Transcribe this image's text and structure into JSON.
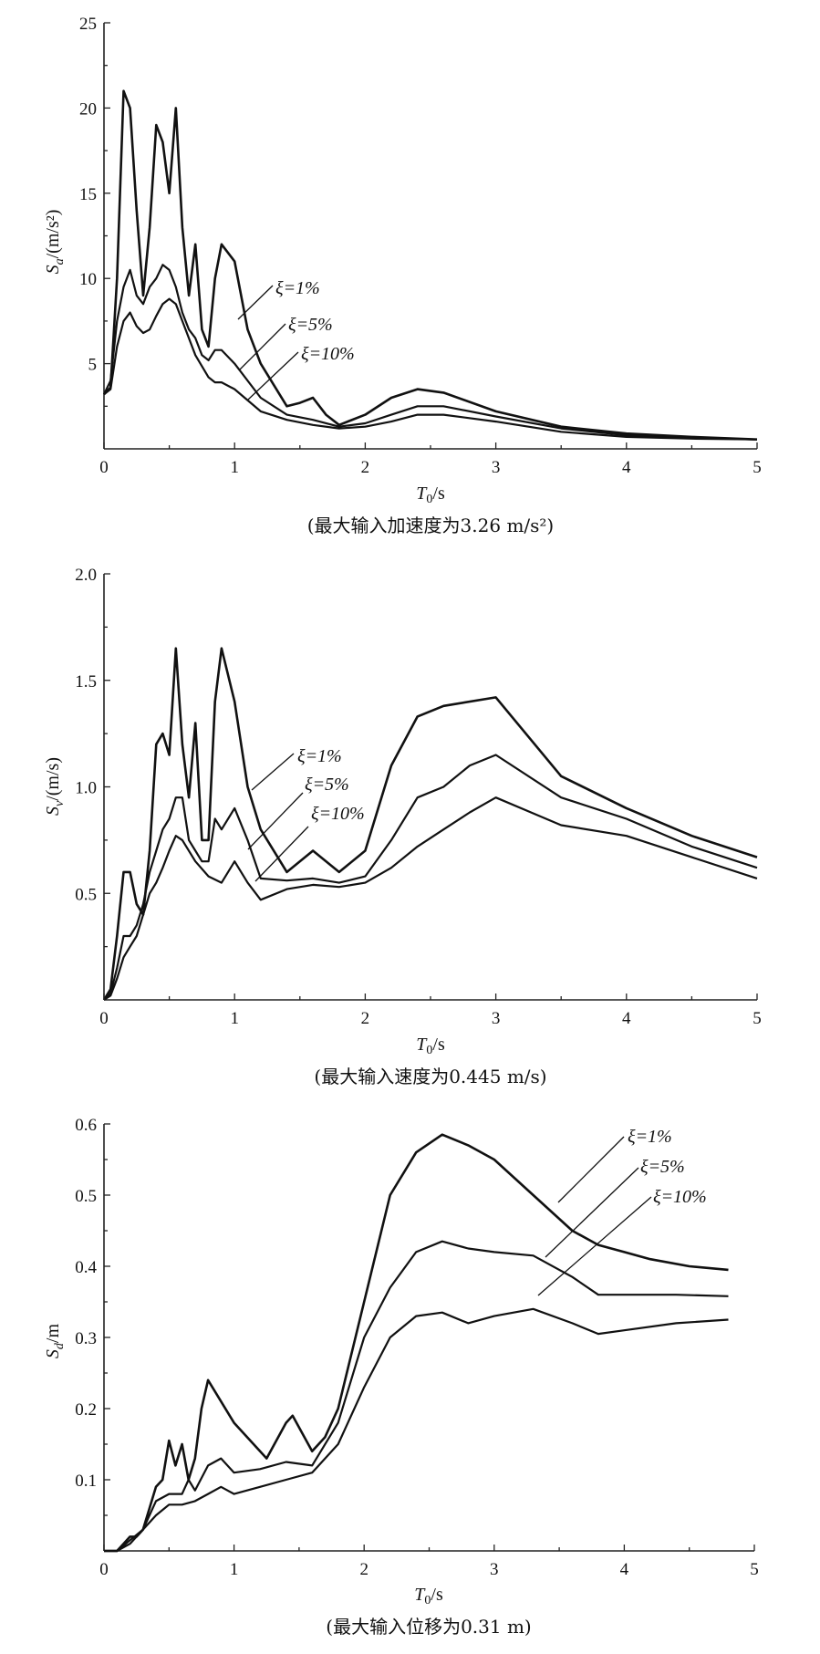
{
  "chart_data": [
    {
      "type": "line",
      "xlabel_main": "T",
      "xlabel_sub": "0",
      "xlabel_unit": "/s",
      "ylabel_main": "S",
      "ylabel_sub": "a",
      "ylabel_unit": "/(m/s²)",
      "caption": "(最大输入加速度为3.26 m/s²)",
      "xlim": [
        0,
        5
      ],
      "ylim": [
        0,
        25
      ],
      "xticks": [
        0,
        1,
        2,
        3,
        4,
        5
      ],
      "xticklabels": [
        "0",
        "1",
        "2",
        "3",
        "4",
        "5"
      ],
      "yticks": [
        5,
        10,
        15,
        20,
        25
      ],
      "yticklabels": [
        "5",
        "10",
        "15",
        "20",
        "25"
      ],
      "series": [
        {
          "name": "ξ=1%",
          "x": [
            0,
            0.05,
            0.1,
            0.15,
            0.2,
            0.25,
            0.3,
            0.35,
            0.4,
            0.45,
            0.5,
            0.55,
            0.6,
            0.65,
            0.7,
            0.75,
            0.8,
            0.85,
            0.9,
            1.0,
            1.1,
            1.2,
            1.4,
            1.5,
            1.6,
            1.7,
            1.8,
            2.0,
            2.2,
            2.4,
            2.6,
            3.0,
            3.5,
            4.0,
            4.5,
            5.0
          ],
          "y": [
            3.2,
            3.6,
            10,
            21,
            20,
            14,
            9,
            13,
            19,
            18,
            15,
            20,
            13,
            9,
            12,
            7,
            6,
            10,
            12,
            11,
            7,
            5,
            2.5,
            2.7,
            3.0,
            2.0,
            1.4,
            2.0,
            3.0,
            3.5,
            3.3,
            2.2,
            1.3,
            0.9,
            0.7,
            0.55
          ]
        },
        {
          "name": "ξ=5%",
          "x": [
            0,
            0.05,
            0.1,
            0.15,
            0.2,
            0.25,
            0.3,
            0.35,
            0.4,
            0.45,
            0.5,
            0.55,
            0.6,
            0.65,
            0.7,
            0.75,
            0.8,
            0.85,
            0.9,
            1.0,
            1.2,
            1.4,
            1.6,
            1.8,
            2.0,
            2.2,
            2.4,
            2.6,
            3.0,
            3.5,
            4.0,
            4.5,
            5.0
          ],
          "y": [
            3.2,
            4.0,
            7.5,
            9.5,
            10.5,
            9,
            8.5,
            9.5,
            10,
            10.8,
            10.5,
            9.5,
            8,
            7,
            6.5,
            5.5,
            5.2,
            5.8,
            5.8,
            5.0,
            3.0,
            2.0,
            1.7,
            1.3,
            1.5,
            2.0,
            2.5,
            2.5,
            1.9,
            1.2,
            0.8,
            0.65,
            0.55
          ]
        },
        {
          "name": "ξ=10%",
          "x": [
            0,
            0.05,
            0.1,
            0.15,
            0.2,
            0.25,
            0.3,
            0.35,
            0.4,
            0.45,
            0.5,
            0.55,
            0.6,
            0.7,
            0.8,
            0.85,
            0.9,
            1.0,
            1.2,
            1.4,
            1.6,
            1.8,
            2.0,
            2.2,
            2.4,
            2.6,
            3.0,
            3.5,
            4.0,
            4.5,
            5.0
          ],
          "y": [
            3.2,
            3.5,
            6,
            7.5,
            8,
            7.2,
            6.8,
            7,
            7.8,
            8.5,
            8.8,
            8.5,
            7.5,
            5.5,
            4.2,
            3.9,
            3.9,
            3.5,
            2.2,
            1.7,
            1.4,
            1.2,
            1.3,
            1.6,
            2.0,
            2.0,
            1.6,
            1.0,
            0.7,
            0.6,
            0.55
          ]
        }
      ],
      "annotations": [
        "ξ=1%",
        "ξ=5%",
        "ξ=10%"
      ]
    },
    {
      "type": "line",
      "xlabel_main": "T",
      "xlabel_sub": "0",
      "xlabel_unit": "/s",
      "ylabel_main": "S",
      "ylabel_sub": "v",
      "ylabel_unit": "/(m/s)",
      "caption": "(最大输入速度为0.445 m/s)",
      "xlim": [
        0,
        5
      ],
      "ylim": [
        0,
        2.0
      ],
      "xticks": [
        0,
        1,
        2,
        3,
        4,
        5
      ],
      "xticklabels": [
        "0",
        "1",
        "2",
        "3",
        "4",
        "5"
      ],
      "yticks": [
        0.5,
        1.0,
        1.5,
        2.0
      ],
      "yticklabels": [
        "0.5",
        "1.0",
        "1.5",
        "2.0"
      ],
      "series": [
        {
          "name": "ξ=1%",
          "x": [
            0,
            0.05,
            0.1,
            0.15,
            0.2,
            0.25,
            0.3,
            0.35,
            0.4,
            0.45,
            0.5,
            0.55,
            0.6,
            0.65,
            0.7,
            0.75,
            0.8,
            0.85,
            0.9,
            1.0,
            1.1,
            1.2,
            1.4,
            1.6,
            1.8,
            2.0,
            2.2,
            2.4,
            2.6,
            3.0,
            3.5,
            4.0,
            4.5,
            5.0
          ],
          "y": [
            0,
            0.05,
            0.3,
            0.6,
            0.6,
            0.45,
            0.4,
            0.7,
            1.2,
            1.25,
            1.15,
            1.65,
            1.2,
            0.95,
            1.3,
            0.75,
            0.75,
            1.4,
            1.65,
            1.4,
            1.0,
            0.8,
            0.6,
            0.7,
            0.6,
            0.7,
            1.1,
            1.33,
            1.38,
            1.42,
            1.05,
            0.9,
            0.77,
            0.67
          ]
        },
        {
          "name": "ξ=5%",
          "x": [
            0,
            0.05,
            0.1,
            0.15,
            0.2,
            0.25,
            0.3,
            0.35,
            0.4,
            0.45,
            0.5,
            0.55,
            0.6,
            0.65,
            0.7,
            0.75,
            0.8,
            0.85,
            0.9,
            1.0,
            1.1,
            1.2,
            1.4,
            1.6,
            1.8,
            2.0,
            2.2,
            2.4,
            2.6,
            2.8,
            3.0,
            3.5,
            4.0,
            4.5,
            5.0
          ],
          "y": [
            0,
            0.03,
            0.15,
            0.3,
            0.3,
            0.35,
            0.45,
            0.6,
            0.7,
            0.8,
            0.85,
            0.95,
            0.95,
            0.75,
            0.7,
            0.65,
            0.65,
            0.85,
            0.8,
            0.9,
            0.75,
            0.57,
            0.56,
            0.57,
            0.55,
            0.58,
            0.75,
            0.95,
            1.0,
            1.1,
            1.15,
            0.95,
            0.85,
            0.72,
            0.62
          ]
        },
        {
          "name": "ξ=10%",
          "x": [
            0,
            0.05,
            0.1,
            0.15,
            0.2,
            0.25,
            0.3,
            0.35,
            0.4,
            0.45,
            0.5,
            0.55,
            0.6,
            0.7,
            0.8,
            0.9,
            1.0,
            1.1,
            1.2,
            1.4,
            1.6,
            1.8,
            2.0,
            2.2,
            2.4,
            2.6,
            2.8,
            3.0,
            3.5,
            4.0,
            4.5,
            5.0
          ],
          "y": [
            0,
            0.02,
            0.1,
            0.2,
            0.25,
            0.3,
            0.4,
            0.5,
            0.55,
            0.62,
            0.7,
            0.77,
            0.75,
            0.65,
            0.58,
            0.55,
            0.65,
            0.55,
            0.47,
            0.52,
            0.54,
            0.53,
            0.55,
            0.62,
            0.72,
            0.8,
            0.88,
            0.95,
            0.82,
            0.77,
            0.67,
            0.57
          ]
        }
      ],
      "annotations": [
        "ξ=1%",
        "ξ=5%",
        "ξ=10%"
      ]
    },
    {
      "type": "line",
      "xlabel_main": "T",
      "xlabel_sub": "0",
      "xlabel_unit": "/s",
      "ylabel_main": "S",
      "ylabel_sub": "d",
      "ylabel_unit": "/m",
      "caption": "(最大输入位移为0.31 m)",
      "xlim": [
        0,
        5
      ],
      "ylim": [
        0,
        0.6
      ],
      "xticks": [
        0,
        1,
        2,
        3,
        4,
        5
      ],
      "xticklabels": [
        "0",
        "1",
        "2",
        "3",
        "4",
        "5"
      ],
      "yticks": [
        0.1,
        0.2,
        0.3,
        0.4,
        0.5,
        0.6
      ],
      "yticklabels": [
        "0.1",
        "0.2",
        "0.3",
        "0.4",
        "0.5",
        "0.6"
      ],
      "series": [
        {
          "name": "ξ=1%",
          "x": [
            0,
            0.1,
            0.15,
            0.2,
            0.25,
            0.3,
            0.35,
            0.4,
            0.45,
            0.5,
            0.55,
            0.6,
            0.65,
            0.7,
            0.75,
            0.8,
            1.0,
            1.2,
            1.25,
            1.4,
            1.45,
            1.6,
            1.7,
            1.8,
            2.0,
            2.2,
            2.4,
            2.6,
            2.8,
            3.0,
            3.3,
            3.6,
            3.8,
            4.0,
            4.2,
            4.5,
            4.8
          ],
          "y": [
            0,
            0,
            0.01,
            0.02,
            0.02,
            0.03,
            0.06,
            0.09,
            0.1,
            0.155,
            0.12,
            0.15,
            0.1,
            0.13,
            0.2,
            0.24,
            0.18,
            0.14,
            0.13,
            0.18,
            0.19,
            0.14,
            0.16,
            0.2,
            0.35,
            0.5,
            0.56,
            0.585,
            0.57,
            0.55,
            0.5,
            0.45,
            0.43,
            0.42,
            0.41,
            0.4,
            0.395
          ]
        },
        {
          "name": "ξ=5%",
          "x": [
            0,
            0.1,
            0.2,
            0.3,
            0.4,
            0.5,
            0.6,
            0.65,
            0.7,
            0.8,
            0.9,
            1.0,
            1.2,
            1.4,
            1.6,
            1.8,
            2.0,
            2.2,
            2.4,
            2.6,
            2.8,
            3.0,
            3.3,
            3.6,
            3.8,
            4.0,
            4.4,
            4.8
          ],
          "y": [
            0,
            0,
            0.015,
            0.03,
            0.07,
            0.08,
            0.08,
            0.1,
            0.085,
            0.12,
            0.13,
            0.11,
            0.115,
            0.125,
            0.12,
            0.18,
            0.3,
            0.37,
            0.42,
            0.435,
            0.425,
            0.42,
            0.415,
            0.385,
            0.36,
            0.36,
            0.36,
            0.358
          ]
        },
        {
          "name": "ξ=10%",
          "x": [
            0,
            0.1,
            0.2,
            0.3,
            0.4,
            0.5,
            0.6,
            0.7,
            0.8,
            0.9,
            1.0,
            1.2,
            1.4,
            1.6,
            1.8,
            2.0,
            2.2,
            2.4,
            2.6,
            2.8,
            3.0,
            3.3,
            3.6,
            3.8,
            4.0,
            4.4,
            4.8
          ],
          "y": [
            0,
            0,
            0.01,
            0.03,
            0.05,
            0.065,
            0.065,
            0.07,
            0.08,
            0.09,
            0.08,
            0.09,
            0.1,
            0.11,
            0.15,
            0.23,
            0.3,
            0.33,
            0.335,
            0.32,
            0.33,
            0.34,
            0.32,
            0.305,
            0.31,
            0.32,
            0.325
          ]
        }
      ],
      "annotations": [
        "ξ=1%",
        "ξ=5%",
        "ξ=10%"
      ]
    }
  ]
}
